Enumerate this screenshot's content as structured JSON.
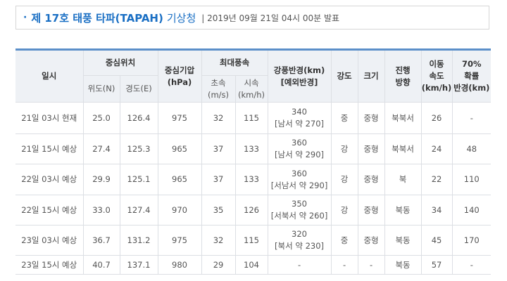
{
  "header": {
    "title": "제 17호 태풍 타파(TAPAH)",
    "agency": "기상청",
    "issued": "| 2019년 09월 21일 04시 00분 발표"
  },
  "table": {
    "header_top": [
      [
        "일시"
      ],
      [
        "중심위치"
      ],
      [
        "중심기압",
        "(hPa)"
      ],
      [
        "최대풍속"
      ],
      [
        "강풍반경(km)",
        "[예외반경]"
      ],
      [
        "강도"
      ],
      [
        "크기"
      ],
      [
        "진행",
        "방향"
      ],
      [
        "이동",
        "속도",
        "(km/h)"
      ],
      [
        "70%",
        "확률",
        "반경(km)"
      ]
    ],
    "header_sub": [
      [
        "위도(N)"
      ],
      [
        "경도(E)"
      ],
      [
        "초속",
        "(m/s)"
      ],
      [
        "시속",
        "(km/h)"
      ]
    ],
    "rows": [
      [
        "21일 03시 현재",
        "25.0",
        "126.4",
        "975",
        "32",
        "115",
        [
          "340",
          "[남서 약 270]"
        ],
        "중",
        "중형",
        "북북서",
        "26",
        "-"
      ],
      [
        "21일 15시 예상",
        "27.4",
        "125.3",
        "965",
        "37",
        "133",
        [
          "360",
          "[남서 약 290]"
        ],
        "강",
        "중형",
        "북북서",
        "24",
        "48"
      ],
      [
        "22일 03시 예상",
        "29.9",
        "125.1",
        "965",
        "37",
        "133",
        [
          "360",
          "[서남서 약 290]"
        ],
        "강",
        "중형",
        "북",
        "22",
        "110"
      ],
      [
        "22일 15시 예상",
        "33.0",
        "127.4",
        "970",
        "35",
        "126",
        [
          "350",
          "[서북서 약 260]"
        ],
        "강",
        "중형",
        "북동",
        "34",
        "140"
      ],
      [
        "23일 03시 예상",
        "36.7",
        "131.2",
        "975",
        "32",
        "115",
        [
          "320",
          "[북서 약 230]"
        ],
        "중",
        "중형",
        "북동",
        "45",
        "170"
      ],
      [
        "23일 15시 예상",
        "40.7",
        "137.1",
        "980",
        "29",
        "104",
        "-",
        "-",
        "-",
        "북동",
        "57",
        "-"
      ]
    ]
  }
}
